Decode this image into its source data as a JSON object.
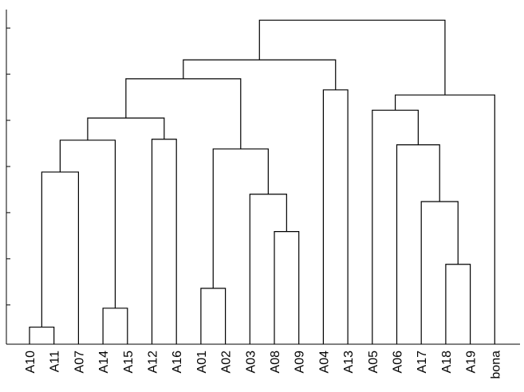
{
  "chart_data": {
    "type": "dendrogram",
    "categories": [
      "A10",
      "A11",
      "A07",
      "A14",
      "A15",
      "A12",
      "A16",
      "A01",
      "A02",
      "A03",
      "A08",
      "A09",
      "A04",
      "A13",
      "A05",
      "A06",
      "A17",
      "A18",
      "A19",
      "bona"
    ],
    "merges": [
      {
        "children": [
          0,
          1
        ],
        "height": 0.52
      },
      {
        "children": [
          3,
          4
        ],
        "height": 0.93
      },
      {
        "children": [
          7,
          8
        ],
        "height": 1.36
      },
      {
        "children": [
          17,
          18
        ],
        "height": 1.88
      },
      {
        "children": [
          10,
          11
        ],
        "height": 2.59
      },
      {
        "children": [
          16,
          23
        ],
        "height": 3.24
      },
      {
        "children": [
          9,
          24
        ],
        "height": 3.4
      },
      {
        "children": [
          20,
          2
        ],
        "height": 3.88
      },
      {
        "children": [
          15,
          25
        ],
        "height": 4.47
      },
      {
        "children": [
          27,
          21
        ],
        "height": 4.57
      },
      {
        "children": [
          5,
          6
        ],
        "height": 4.59
      },
      {
        "children": [
          22,
          26
        ],
        "height": 4.38
      },
      {
        "children": [
          29,
          30
        ],
        "height": 5.05
      },
      {
        "children": [
          14,
          28
        ],
        "height": 5.22
      },
      {
        "children": [
          32,
          31
        ],
        "height": 5.9
      },
      {
        "children": [
          12,
          13
        ],
        "height": 5.66
      },
      {
        "children": [
          33,
          19
        ],
        "height": 5.55
      },
      {
        "children": [
          34,
          35
        ],
        "height": 6.31
      },
      {
        "children": [
          37,
          36
        ],
        "height": 7.17
      }
    ],
    "color": "#000000",
    "ylim": [
      0.15,
      7.4
    ],
    "yticks": [
      1,
      2,
      3,
      4,
      5,
      6,
      7
    ]
  }
}
